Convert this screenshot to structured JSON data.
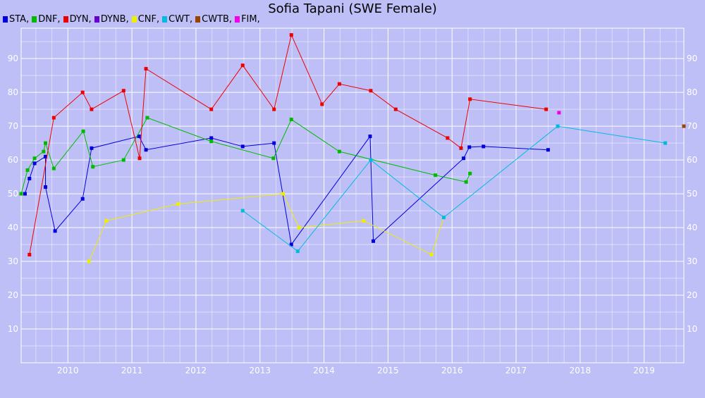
{
  "chart_data": {
    "type": "line",
    "title": "Sofia Tapani (SWE Female)",
    "xlabel": "",
    "ylabel": "",
    "xlim": [
      2009.27,
      2019.62
    ],
    "ylim": [
      0,
      99
    ],
    "x_ticks": [
      2010,
      2011,
      2012,
      2013,
      2014,
      2015,
      2016,
      2017,
      2018,
      2019
    ],
    "y_ticks": [
      10,
      20,
      30,
      40,
      50,
      60,
      70,
      80,
      90
    ],
    "grid": true,
    "legend_position": "top-left",
    "series": [
      {
        "name": "STA",
        "color": "#0000dd",
        "points": [
          [
            2009.33,
            50
          ],
          [
            2009.4,
            54.5
          ],
          [
            2009.48,
            59
          ],
          [
            2009.65,
            61
          ],
          [
            2009.65,
            52
          ],
          [
            2009.8,
            39
          ],
          [
            2010.23,
            48.5
          ],
          [
            2010.37,
            63.5
          ],
          [
            2011.11,
            67
          ],
          [
            2011.22,
            63
          ],
          [
            2012.24,
            66.5
          ],
          [
            2012.73,
            64
          ],
          [
            2013.22,
            65
          ],
          [
            2013.49,
            35
          ],
          [
            2014.72,
            67
          ],
          [
            2014.77,
            36
          ],
          [
            2016.18,
            60.5
          ],
          [
            2016.27,
            63.8
          ],
          [
            2016.49,
            64
          ],
          [
            2017.5,
            63
          ]
        ]
      },
      {
        "name": "DNF",
        "color": "#00bb00",
        "points": [
          [
            2009.27,
            50
          ],
          [
            2009.37,
            57
          ],
          [
            2009.48,
            60.5
          ],
          [
            2009.62,
            62.5
          ],
          [
            2009.65,
            65
          ],
          [
            2009.78,
            57.5
          ],
          [
            2010.24,
            68.5
          ],
          [
            2010.39,
            58
          ],
          [
            2010.87,
            60
          ],
          [
            2011.24,
            72.5
          ],
          [
            2012.24,
            65.5
          ],
          [
            2013.21,
            60.5
          ],
          [
            2013.49,
            72
          ],
          [
            2014.24,
            62.5
          ],
          [
            2015.74,
            55.5
          ],
          [
            2016.22,
            53.5
          ],
          [
            2016.28,
            56
          ]
        ]
      },
      {
        "name": "DYN",
        "color": "#ee0000",
        "points": [
          [
            2009.4,
            32
          ],
          [
            2009.78,
            72.5
          ],
          [
            2010.23,
            80
          ],
          [
            2010.37,
            75
          ],
          [
            2010.87,
            80.5
          ],
          [
            2011.12,
            60.5
          ],
          [
            2011.22,
            87
          ],
          [
            2012.24,
            75
          ],
          [
            2012.73,
            88
          ],
          [
            2013.22,
            75
          ],
          [
            2013.49,
            97
          ],
          [
            2013.97,
            76.5
          ],
          [
            2014.24,
            82.5
          ],
          [
            2014.73,
            80.5
          ],
          [
            2015.12,
            75
          ],
          [
            2015.93,
            66.5
          ],
          [
            2016.14,
            63.5
          ],
          [
            2016.28,
            78
          ],
          [
            2017.47,
            75
          ]
        ]
      },
      {
        "name": "DYNB",
        "color": "#6600cc",
        "points": []
      },
      {
        "name": "CNF",
        "color": "#eeee00",
        "points": [
          [
            2010.33,
            30
          ],
          [
            2010.6,
            42
          ],
          [
            2011.72,
            47
          ],
          [
            2013.36,
            50
          ],
          [
            2013.61,
            40
          ],
          [
            2014.62,
            42
          ],
          [
            2015.68,
            32
          ],
          [
            2015.87,
            43
          ]
        ]
      },
      {
        "name": "CWT",
        "color": "#00bbdd",
        "points": [
          [
            2012.73,
            45
          ],
          [
            2013.59,
            33
          ],
          [
            2014.73,
            60
          ],
          [
            2015.87,
            43
          ],
          [
            2017.65,
            70
          ],
          [
            2019.33,
            65
          ]
        ]
      },
      {
        "name": "CWTB",
        "color": "#994400",
        "points": [
          [
            2019.62,
            70
          ]
        ]
      },
      {
        "name": "FIM",
        "color": "#ee00ee",
        "points": [
          [
            2017.67,
            74
          ]
        ]
      }
    ]
  }
}
